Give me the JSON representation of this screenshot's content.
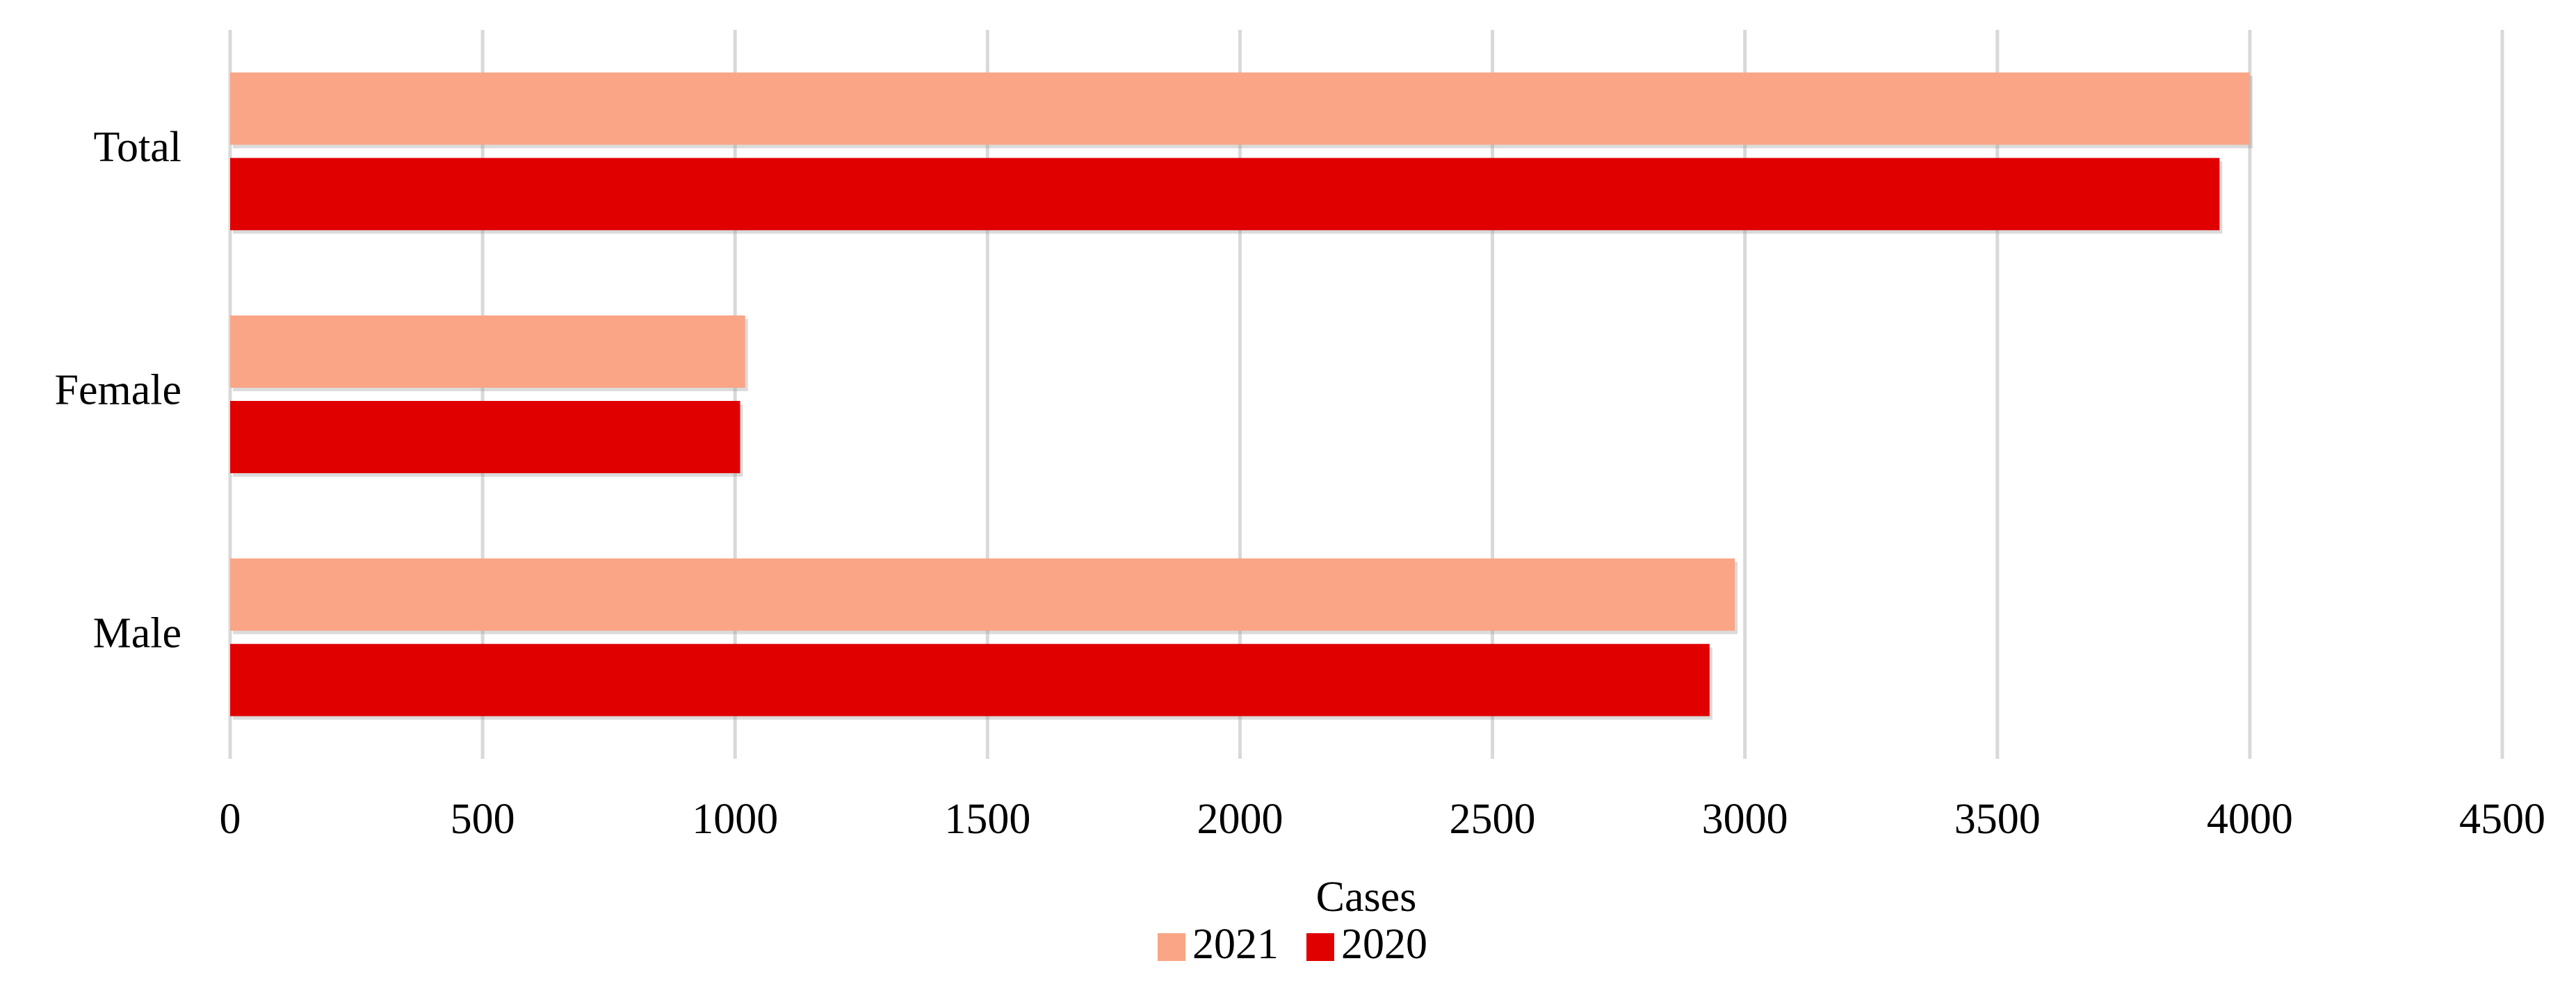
{
  "chart_data": {
    "type": "barh",
    "x_label": "Cases",
    "categories": [
      "Total",
      "Female",
      "Male"
    ],
    "series": [
      {
        "name": "2021",
        "color": "#f9a586",
        "values": [
          4000,
          1020,
          2980
        ]
      },
      {
        "name": "2020",
        "color": "#e00000",
        "values": [
          3940,
          1010,
          2930
        ]
      }
    ],
    "xlim": [
      0,
      4500
    ],
    "xticks": [
      0,
      500,
      1000,
      1500,
      2000,
      2500,
      3000,
      3500,
      4000,
      4500
    ],
    "grid": true,
    "legend": "bottom"
  }
}
